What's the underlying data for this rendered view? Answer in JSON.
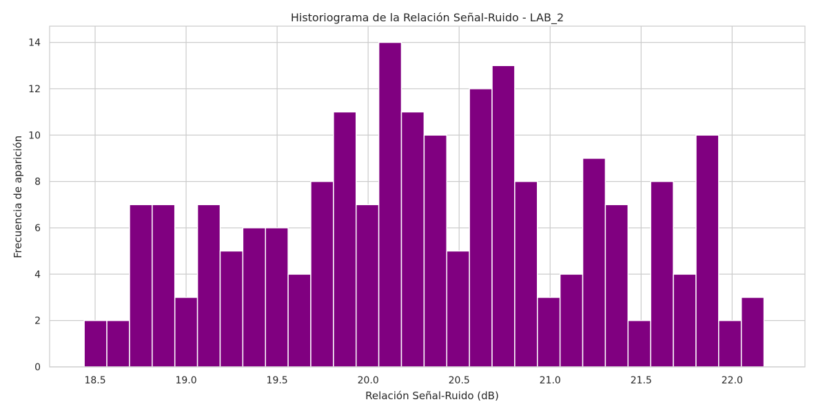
{
  "chart_data": {
    "type": "bar",
    "title": "Historiograma de la Relación Señal-Ruido - LAB_2",
    "xlabel": "Relación Señal-Ruido (dB)",
    "ylabel": "Frecuencia de aparición",
    "bin_start": 18.44,
    "bin_width": 0.1245,
    "counts": [
      2,
      2,
      7,
      7,
      3,
      7,
      5,
      6,
      6,
      4,
      8,
      11,
      7,
      14,
      11,
      10,
      5,
      12,
      13,
      8,
      3,
      4,
      9,
      7,
      2,
      8,
      4,
      10,
      2,
      3
    ],
    "xlim": [
      18.25,
      22.4
    ],
    "ylim": [
      0,
      14.7
    ],
    "xticks": [
      "18.5",
      "19.0",
      "19.5",
      "20.0",
      "20.5",
      "21.0",
      "21.5",
      "22.0"
    ],
    "yticks": [
      "0",
      "2",
      "4",
      "6",
      "8",
      "10",
      "12",
      "14"
    ],
    "grid": true,
    "colors": {
      "bar": "#800080",
      "bar_edge": "#ffffff",
      "grid": "#cccccc",
      "axes": "#cccccc",
      "text": "#262626"
    }
  }
}
